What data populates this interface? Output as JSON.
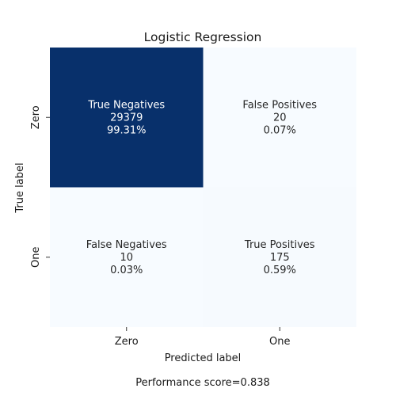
{
  "chart_data": {
    "type": "heatmap",
    "title": "Logistic Regression",
    "xlabel": "Predicted label",
    "ylabel": "True label",
    "x_categories": [
      "Zero",
      "One"
    ],
    "y_categories": [
      "Zero",
      "One"
    ],
    "colormap": "Blues",
    "colorbar": false,
    "cells": [
      {
        "row": 0,
        "col": 0,
        "name": "True Negatives",
        "count": "29379",
        "percent": "99.31%",
        "value": 29379
      },
      {
        "row": 0,
        "col": 1,
        "name": "False Positives",
        "count": "20",
        "percent": "0.07%",
        "value": 20
      },
      {
        "row": 1,
        "col": 0,
        "name": "False Negatives",
        "count": "10",
        "percent": "0.03%",
        "value": 10
      },
      {
        "row": 1,
        "col": 1,
        "name": "True Positives",
        "count": "175",
        "percent": "0.59%",
        "value": 175
      }
    ],
    "colors": {
      "low": "#f7fbff",
      "high": "#08306b",
      "text_dark": "#262626",
      "text_light": "#ffffff"
    }
  },
  "footer": "Performance score=0.838"
}
